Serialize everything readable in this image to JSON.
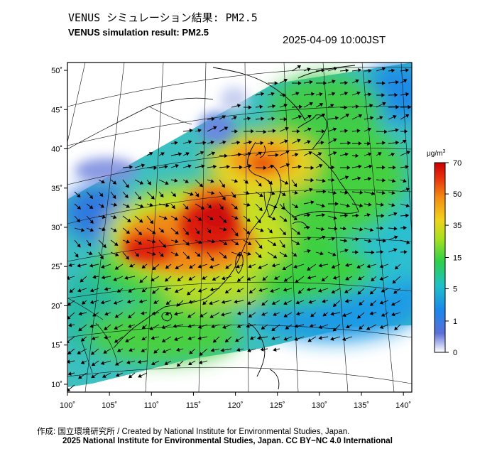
{
  "header": {
    "title_ja": "VENUS シミュレーション結果: PM2.5",
    "title_en": "VENUS simulation result: PM2.5",
    "timestamp": "2025-04-09 10:00JST"
  },
  "map": {
    "lon_range": [
      100,
      141
    ],
    "lat_range": [
      9,
      51
    ],
    "lon_ticks": [
      "100˚",
      "105˚",
      "110˚",
      "115˚",
      "120˚",
      "125˚",
      "130˚",
      "135˚",
      "140˚"
    ],
    "lat_ticks": [
      "50˚",
      "45˚",
      "40˚",
      "35˚",
      "30˚",
      "25˚",
      "20˚",
      "15˚",
      "10˚"
    ],
    "lat_tick_values": [
      50,
      45,
      40,
      35,
      30,
      25,
      20,
      15,
      10
    ],
    "lon_tick_values": [
      100,
      105,
      110,
      115,
      120,
      125,
      130,
      135,
      140
    ]
  },
  "colorbar": {
    "unit_base": "μg/m",
    "unit_sup": "3",
    "labels": [
      "70",
      "50",
      "35",
      "15",
      "5",
      "1",
      "0"
    ],
    "values": [
      70,
      50,
      35,
      15,
      5,
      1,
      0
    ],
    "colors": [
      "#e8e8f8",
      "#3050d0",
      "#1090e8",
      "#20c8b0",
      "#40d040",
      "#b8e020",
      "#f0d020",
      "#f08010",
      "#e02010",
      "#c00000"
    ]
  },
  "footer": {
    "credit_ja_en": "作成: 国立環境研究所 / Created by National Institute for Environmental Studies, Japan.",
    "copyright": "2025 National Institute for Environmental Studies, Japan. CC BY−NC 4.0 International"
  }
}
